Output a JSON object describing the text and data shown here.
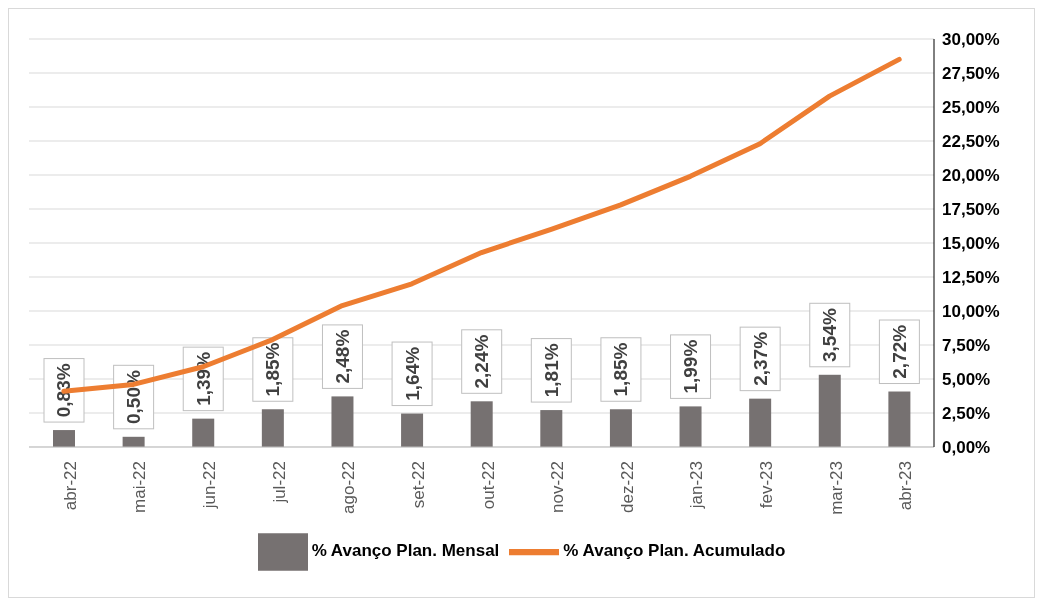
{
  "chart_data": {
    "type": "bar",
    "categories": [
      "abr-22",
      "mai-22",
      "jun-22",
      "jul-22",
      "ago-22",
      "set-22",
      "out-22",
      "nov-22",
      "dez-22",
      "jan-23",
      "fev-23",
      "mar-23",
      "abr-23"
    ],
    "series": [
      {
        "name": "% Avanço Plan. Mensal",
        "color": "#767171",
        "axis": "y",
        "values": [
          0.83,
          0.5,
          1.39,
          1.85,
          2.48,
          1.64,
          2.24,
          1.81,
          1.85,
          1.99,
          2.37,
          3.54,
          2.72
        ],
        "value_labels": [
          "0,83%",
          "0,50%",
          "1,39%",
          "1,85%",
          "2,48%",
          "1,64%",
          "2,24%",
          "1,81%",
          "1,85%",
          "1,99%",
          "2,37%",
          "3,54%",
          "2,72%"
        ]
      },
      {
        "type": "line",
        "name": "% Avanço Plan. Acumulado",
        "color": "#ed7d31",
        "axis": "y2",
        "values": [
          4.1,
          4.6,
          5.9,
          7.9,
          10.4,
          12.0,
          14.3,
          16.0,
          17.8,
          19.9,
          22.3,
          25.8,
          28.5
        ]
      }
    ],
    "ylim": [
      0,
      20
    ],
    "y2lim": [
      0,
      30
    ],
    "y2ticks": [
      {
        "value": 0,
        "label": "0,00%"
      },
      {
        "value": 2.5,
        "label": "2,50%"
      },
      {
        "value": 5,
        "label": "5,00%"
      },
      {
        "value": 7.5,
        "label": "7,50%"
      },
      {
        "value": 10,
        "label": "10,00%"
      },
      {
        "value": 12.5,
        "label": "12,50%"
      },
      {
        "value": 15,
        "label": "15,00%"
      },
      {
        "value": 17.5,
        "label": "17,50%"
      },
      {
        "value": 20,
        "label": "20,00%"
      },
      {
        "value": 22.5,
        "label": "22,50%"
      },
      {
        "value": 25,
        "label": "25,00%"
      },
      {
        "value": 27.5,
        "label": "27,50%"
      },
      {
        "value": 30,
        "label": "30,00%"
      }
    ],
    "grid": "y",
    "legend": "bottom",
    "line_style": "solid",
    "marker": "none"
  }
}
